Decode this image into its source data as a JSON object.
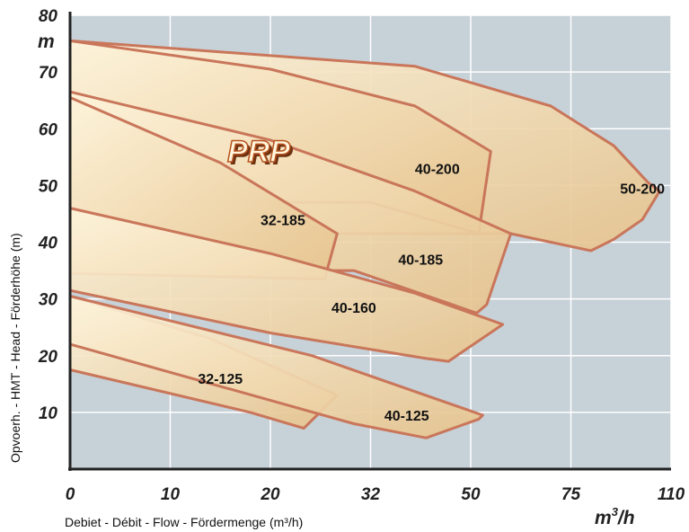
{
  "chart_data": {
    "type": "area",
    "brand": "PRP",
    "xlabel": "Debiet - Débit - Flow - Fördermenge (m³/h)",
    "ylabel": "Opvoerh. - HMT - Head - Förderhöhe (m)",
    "x_unit_base": "m",
    "x_unit_exp": "3",
    "x_unit_tail": "/h",
    "y_unit": "m",
    "x_ticks": [
      "0",
      "10",
      "20",
      "32",
      "50",
      "75",
      "110"
    ],
    "y_ticks": [
      "10",
      "20",
      "30",
      "40",
      "50",
      "60",
      "70",
      "80"
    ],
    "ylim": [
      0,
      80
    ],
    "grid": true,
    "colors": {
      "plot_bg": "#c7d1d8",
      "grid": "#ffffff",
      "curve_fill_light": "#fdf3da",
      "curve_fill_dark": "#e6c38d",
      "curve_stroke": "#c9765a",
      "axis": "#222222"
    },
    "curves": [
      {
        "name": "50-200",
        "label_at": [
          100,
          49.5
        ],
        "polygon": [
          [
            0,
            75.5
          ],
          [
            40,
            71
          ],
          [
            70,
            64
          ],
          [
            90,
            57
          ],
          [
            102,
            50.5
          ],
          [
            106,
            49
          ],
          [
            100,
            44
          ],
          [
            90,
            40.5
          ],
          [
            82,
            38.5
          ],
          [
            70,
            40
          ],
          [
            60,
            41.5
          ],
          [
            0,
            41.5
          ]
        ]
      },
      {
        "name": "40-200",
        "label_at": [
          44,
          53
        ],
        "polygon": [
          [
            0,
            75.5
          ],
          [
            20,
            70.5
          ],
          [
            40,
            64
          ],
          [
            55,
            56
          ],
          [
            52,
            41.5
          ],
          [
            32,
            47
          ],
          [
            0,
            47
          ]
        ]
      },
      {
        "name": "40-185",
        "label_at": [
          41,
          37
        ],
        "polygon": [
          [
            0,
            66.5
          ],
          [
            20,
            58
          ],
          [
            40,
            49
          ],
          [
            60,
            41.5
          ],
          [
            54,
            29
          ],
          [
            51.5,
            27.5
          ],
          [
            30,
            35
          ],
          [
            0,
            35
          ]
        ]
      },
      {
        "name": "32-185",
        "label_at": [
          21.5,
          44
        ],
        "polygon": [
          [
            0,
            65.5
          ],
          [
            15,
            54
          ],
          [
            28,
            41.5
          ],
          [
            26.5,
            33.5
          ],
          [
            0,
            34.5
          ]
        ]
      },
      {
        "name": "40-160",
        "label_at": [
          30,
          28.5
        ],
        "polygon": [
          [
            0,
            46
          ],
          [
            20,
            38
          ],
          [
            40,
            31
          ],
          [
            58,
            25.5
          ],
          [
            46,
            19
          ],
          [
            42,
            19.5
          ],
          [
            20,
            24
          ],
          [
            0,
            31.5
          ]
        ]
      },
      {
        "name": "32-125",
        "label_at": [
          15,
          16
        ],
        "polygon": [
          [
            0,
            30.5
          ],
          [
            14,
            23
          ],
          [
            28,
            13
          ],
          [
            24,
            7.2
          ],
          [
            18,
            10
          ],
          [
            0,
            17.5
          ]
        ]
      },
      {
        "name": "40-125",
        "label_at": [
          38.5,
          9.5
        ],
        "polygon": [
          [
            0,
            30.5
          ],
          [
            25,
            20
          ],
          [
            53,
            9.5
          ],
          [
            52,
            8.8
          ],
          [
            42,
            5.5
          ],
          [
            30,
            8
          ],
          [
            0,
            22
          ]
        ]
      }
    ]
  }
}
